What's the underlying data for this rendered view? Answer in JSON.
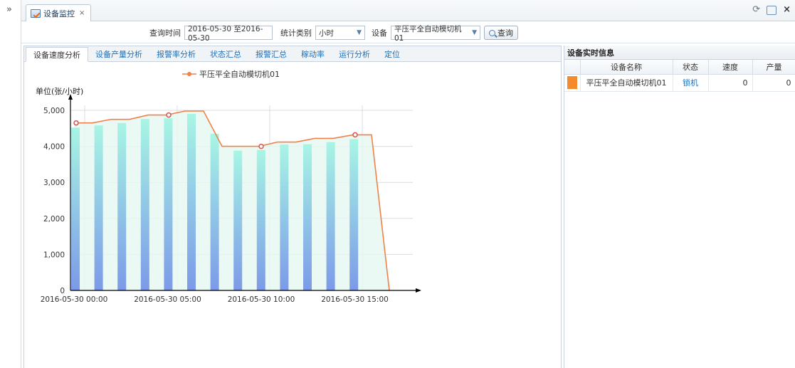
{
  "window": {
    "tab_label": "设备监控",
    "tab_close": "×",
    "expand_glyph": "»",
    "tools": {
      "refresh_glyph": "⟳",
      "close_glyph": "×"
    }
  },
  "filters": {
    "time_label": "查询时间",
    "time_value": "2016-05-30 至2016-05-30",
    "type_label": "统计类别",
    "type_value": "小时",
    "device_label": "设备",
    "device_value": "平压平全自动模切机01",
    "query_button": "查询"
  },
  "subtabs": [
    {
      "label": "设备速度分析",
      "active": true
    },
    {
      "label": "设备产量分析",
      "active": false
    },
    {
      "label": "报警率分析",
      "active": false
    },
    {
      "label": "状态汇总",
      "active": false
    },
    {
      "label": "报警汇总",
      "active": false
    },
    {
      "label": "稼动率",
      "active": false
    },
    {
      "label": "运行分析",
      "active": false
    },
    {
      "label": "定位",
      "active": false
    }
  ],
  "chart_data": {
    "type": "bar",
    "ylabel": "单位(张/小时)",
    "ylim": [
      0,
      5000
    ],
    "yticks": [
      0,
      1000,
      2000,
      3000,
      4000,
      5000
    ],
    "ytick_labels": [
      "0",
      "1,000",
      "2,000",
      "3,000",
      "4,000",
      "5,000"
    ],
    "x_labels": [
      {
        "index": 0,
        "text": "2016-05-30 00:00"
      },
      {
        "index": 5,
        "text": "2016-05-30 05:00"
      },
      {
        "index": 10,
        "text": "2016-05-30 10:00"
      },
      {
        "index": 15,
        "text": "2016-05-30 15:00"
      }
    ],
    "legend": "平压平全自动模切机01",
    "bar_values": [
      4520,
      4580,
      4650,
      4760,
      4780,
      4900,
      4350,
      3880,
      3900,
      4050,
      4060,
      4120,
      4200,
      0,
      0
    ],
    "line_values": [
      4650,
      4650,
      4750,
      4750,
      4870,
      4870,
      4980,
      4980,
      4000,
      4000,
      4000,
      4120,
      4120,
      4220,
      4220,
      4320,
      4320,
      0
    ],
    "line_markers": [
      0,
      4,
      8,
      12
    ],
    "colors": {
      "line": "#f0814a",
      "bar_top": "#a8f5e4",
      "bar_bottom": "#7c9ae8",
      "area": "#e6f8f3"
    }
  },
  "realtime": {
    "title": "设备实时信息",
    "headers": [
      "",
      "设备名称",
      "状态",
      "速度",
      "产量"
    ],
    "rows": [
      {
        "color": "#f58a2c",
        "name": "平压平全自动模切机01",
        "status": "锁机",
        "speed": "0",
        "output": "0"
      }
    ]
  }
}
